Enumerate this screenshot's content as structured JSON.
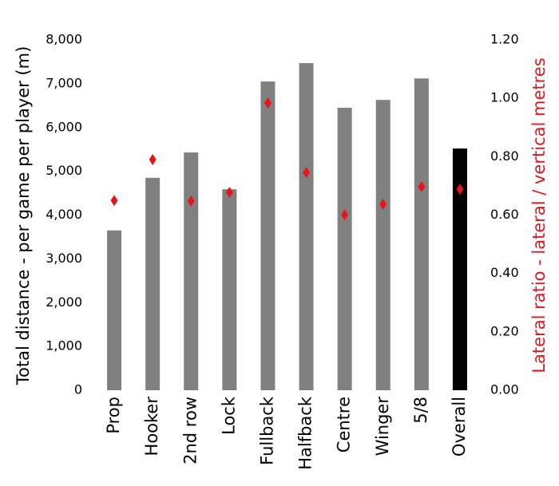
{
  "chart_data": {
    "type": "bar",
    "y_label": "Total distance - per game per player (m)",
    "y2_label": "Lateral ratio - lateral / vertical metres",
    "categories": [
      "Prop",
      "Hooker",
      "2nd row",
      "Lock",
      "Fullback",
      "Halfback",
      "Centre",
      "Winger",
      "5/8",
      "Overall"
    ],
    "series": [
      {
        "type": "bar",
        "color": "#808080",
        "colors": [
          "#808080",
          "#808080",
          "#808080",
          "#808080",
          "#808080",
          "#808080",
          "#808080",
          "#808080",
          "#808080",
          "#000000"
        ],
        "values": [
          3650,
          4850,
          5430,
          4590,
          7050,
          7470,
          6450,
          6630,
          7120,
          5520
        ]
      },
      {
        "type": "scatter",
        "axis": "y2",
        "color": "#e8141b",
        "marker": "diamond",
        "values": [
          0.65,
          0.79,
          0.648,
          0.678,
          0.984,
          0.746,
          0.601,
          0.637,
          0.697,
          0.689
        ]
      }
    ],
    "ylim": [
      0,
      8000
    ],
    "yticks": [
      0,
      {
        "value": 1000,
        "label": "1,000"
      },
      {
        "value": 2000,
        "label": "2,000"
      },
      {
        "value": 3000,
        "label": "3,000"
      },
      {
        "value": 4000,
        "label": "4,000"
      },
      {
        "value": 5000,
        "label": "5,000"
      },
      {
        "value": 6000,
        "label": "6,000"
      },
      {
        "value": 7000,
        "label": "7,000"
      },
      {
        "value": 8000,
        "label": "8,000"
      }
    ],
    "y2lim": [
      0,
      1.2
    ],
    "y2ticks": [
      {
        "value": 0,
        "label": "0.00"
      },
      {
        "value": 0.2,
        "label": "0.20"
      },
      {
        "value": 0.4,
        "label": "0.40"
      },
      {
        "value": 0.6,
        "label": "0.60"
      },
      {
        "value": 0.8,
        "label": "0.80"
      },
      {
        "value": 1.0,
        "label": "1.00"
      },
      {
        "value": 1.2,
        "label": "1.20"
      }
    ],
    "y2_label_color": "#e8141b",
    "grid": false
  }
}
